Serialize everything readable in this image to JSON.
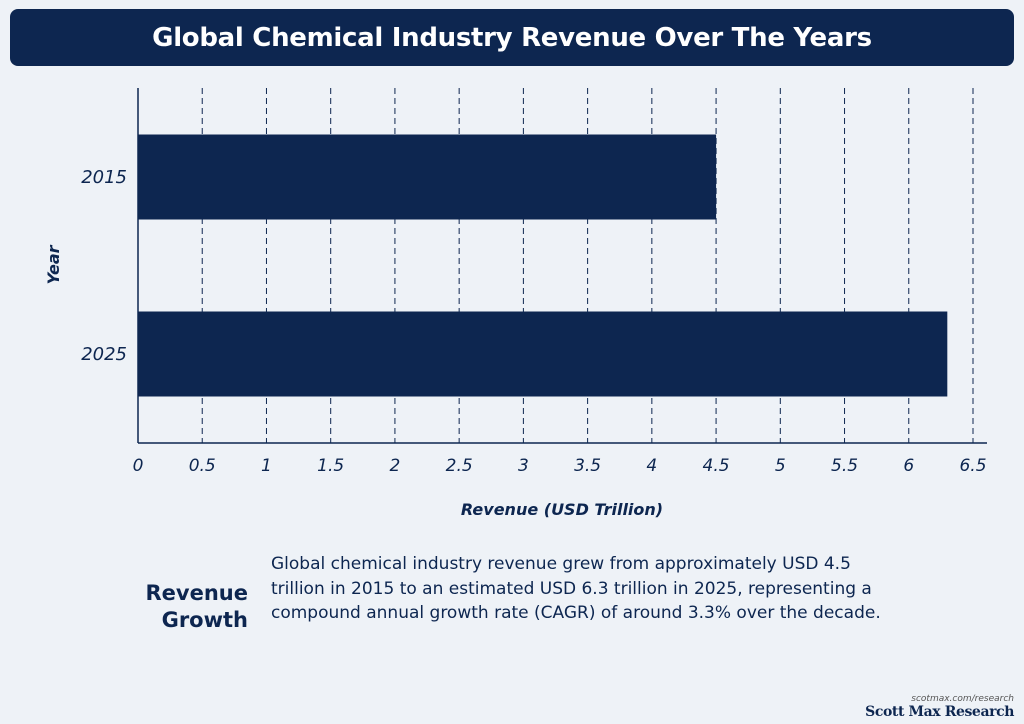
{
  "page": {
    "title": "Global Chemical Industry Revenue Over The Years"
  },
  "colors": {
    "bar": "#0d2650",
    "background": "#eef2f7",
    "banner": "#0d2650"
  },
  "chart_data": {
    "type": "bar",
    "orientation": "horizontal",
    "title": "Global Chemical Industry Revenue Over The Years",
    "categories": [
      "2015",
      "2025"
    ],
    "values": [
      4.5,
      6.3
    ],
    "xlabel": "Revenue (USD Trillion)",
    "ylabel": "Year",
    "xlim": [
      0,
      6.5
    ],
    "xticks": [
      0,
      0.5,
      1,
      1.5,
      2,
      2.5,
      3,
      3.5,
      4,
      4.5,
      5,
      5.5,
      6,
      6.5
    ],
    "xtick_labels": [
      "0",
      "0.5",
      "1",
      "1.5",
      "2",
      "2.5",
      "3",
      "3.5",
      "4",
      "4.5",
      "5",
      "5.5",
      "6",
      "6.5"
    ],
    "grid": "vertical-dashed"
  },
  "summary": {
    "heading_line1": "Revenue",
    "heading_line2": "Growth",
    "text": "Global chemical industry revenue grew from approximately USD 4.5 trillion in 2015 to an estimated USD 6.3 trillion in 2025, representing a compound annual growth rate (CAGR) of around 3.3% over the decade."
  },
  "credit": {
    "url": "scotmax.com/research",
    "brand": "Scott Max Research"
  }
}
